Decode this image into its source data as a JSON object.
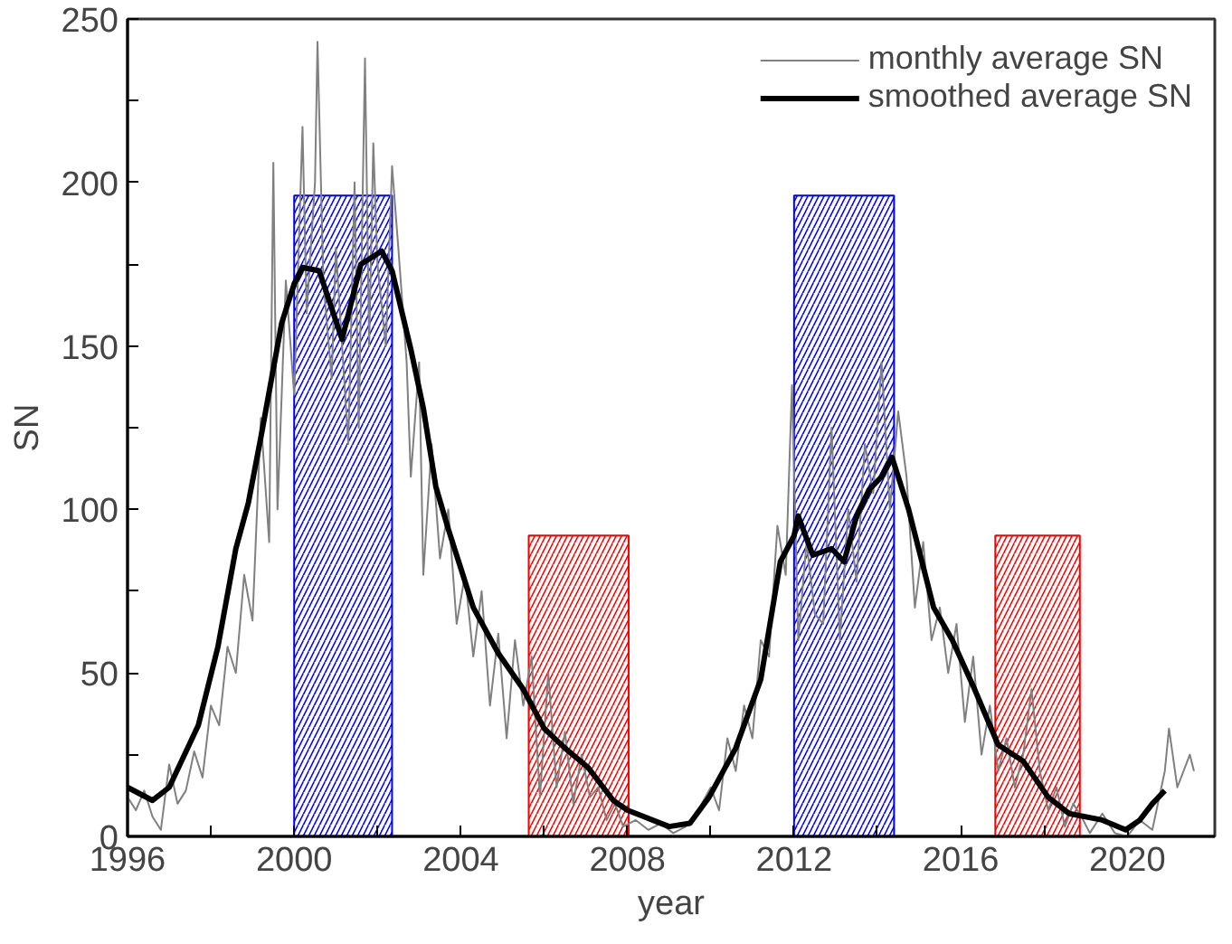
{
  "chart_data": {
    "type": "line",
    "xlabel": "year",
    "ylabel": "SN",
    "xlim": [
      1996,
      2022.1
    ],
    "ylim": [
      0,
      250
    ],
    "xticks": [
      1996,
      {
        "value": 1998,
        "label": null
      },
      2000,
      {
        "value": 2002,
        "label": null
      },
      2004,
      {
        "value": 2006,
        "label": null
      },
      2008,
      {
        "value": 2010,
        "label": null
      },
      2012,
      {
        "value": 2014,
        "label": null
      },
      2016,
      {
        "value": 2018,
        "label": null
      },
      2020
    ],
    "yticks": [
      0,
      {
        "value": 25,
        "label": null
      },
      50,
      {
        "value": 75,
        "label": null
      },
      100,
      {
        "value": 125,
        "label": null
      },
      150,
      {
        "value": 175,
        "label": null
      },
      200,
      {
        "value": 225,
        "label": null
      },
      250
    ],
    "grid": false,
    "legend": "top right",
    "line_style": "solid",
    "marker": "none",
    "series": [
      {
        "type": "area",
        "color": "#0000ff",
        "x": [
          2000.0,
          2002.35
        ],
        "values": [
          196,
          196
        ]
      },
      {
        "type": "area",
        "color": "#ff0000",
        "x": [
          2005.63,
          2008.03
        ],
        "values": [
          92,
          92
        ]
      },
      {
        "type": "area",
        "color": "#0000ff",
        "x": [
          2012.0,
          2014.4
        ],
        "values": [
          196,
          196
        ]
      },
      {
        "type": "area",
        "color": "#ff0000",
        "x": [
          2016.83,
          2018.86
        ],
        "values": [
          92,
          92
        ]
      },
      {
        "name": "monthly average SN",
        "color": "#808080",
        "x": [
          1996.0,
          1996.2,
          1996.4,
          1996.6,
          1996.8,
          1997.0,
          1997.2,
          1997.4,
          1997.6,
          1997.8,
          1998.0,
          1998.2,
          1998.4,
          1998.6,
          1998.8,
          1999.0,
          1999.2,
          1999.4,
          1999.5,
          1999.6,
          1999.8,
          2000.0,
          2000.2,
          2000.3,
          2000.5,
          2000.56,
          2000.7,
          2000.9,
          2001.0,
          2001.15,
          2001.3,
          2001.45,
          2001.55,
          2001.7,
          2001.8,
          2001.9,
          2002.0,
          2002.2,
          2002.35,
          2002.5,
          2002.7,
          2002.8,
          2003.0,
          2003.1,
          2003.3,
          2003.5,
          2003.7,
          2003.9,
          2004.1,
          2004.3,
          2004.5,
          2004.7,
          2004.9,
          2005.1,
          2005.3,
          2005.5,
          2005.7,
          2005.9,
          2006.1,
          2006.3,
          2006.5,
          2006.7,
          2006.9,
          2007.1,
          2007.3,
          2007.5,
          2007.7,
          2007.9,
          2008.2,
          2008.5,
          2008.8,
          2009.1,
          2009.4,
          2009.7,
          2010.0,
          2010.2,
          2010.4,
          2010.6,
          2010.8,
          2011.0,
          2011.2,
          2011.4,
          2011.6,
          2011.8,
          2011.95,
          2012.1,
          2012.3,
          2012.5,
          2012.7,
          2012.9,
          2013.1,
          2013.3,
          2013.5,
          2013.7,
          2013.9,
          2014.1,
          2014.3,
          2014.5,
          2014.7,
          2014.9,
          2015.1,
          2015.3,
          2015.5,
          2015.7,
          2015.9,
          2016.1,
          2016.3,
          2016.5,
          2016.7,
          2016.9,
          2017.1,
          2017.3,
          2017.5,
          2017.7,
          2017.9,
          2018.1,
          2018.3,
          2018.5,
          2018.7,
          2018.9,
          2019.1,
          2019.4,
          2019.7,
          2020.0,
          2020.3,
          2020.6,
          2020.9,
          2021.0,
          2021.2,
          2021.5,
          2021.6
        ],
        "values": [
          12,
          8,
          14,
          6,
          2,
          22,
          10,
          14,
          26,
          18,
          40,
          34,
          58,
          50,
          80,
          66,
          128,
          90,
          206,
          100,
          170,
          135,
          217,
          160,
          200,
          243,
          170,
          140,
          180,
          150,
          120,
          200,
          125,
          238,
          150,
          212,
          175,
          150,
          205,
          180,
          145,
          110,
          145,
          80,
          120,
          85,
          100,
          65,
          80,
          55,
          75,
          40,
          62,
          30,
          60,
          40,
          55,
          12,
          50,
          15,
          32,
          10,
          25,
          12,
          15,
          5,
          10,
          3,
          5,
          2,
          4,
          1,
          3,
          8,
          15,
          8,
          30,
          20,
          40,
          30,
          60,
          55,
          95,
          80,
          138,
          60,
          90,
          68,
          65,
          125,
          60,
          100,
          78,
          120,
          105,
          145,
          100,
          130,
          110,
          70,
          90,
          60,
          70,
          50,
          65,
          35,
          55,
          25,
          40,
          20,
          30,
          15,
          25,
          45,
          20,
          8,
          15,
          3,
          10,
          6,
          1,
          7,
          1,
          0,
          5,
          2,
          20,
          33,
          15,
          25,
          20
        ]
      },
      {
        "name": "smoothed average SN",
        "color": "#000000",
        "x": [
          1996.0,
          1996.6,
          1997.0,
          1997.7,
          1998.17,
          1998.6,
          1998.9,
          1999.2,
          1999.7,
          2000.0,
          2000.2,
          2000.6,
          2001.15,
          2001.6,
          2002.1,
          2002.35,
          2002.8,
          2003.1,
          2003.4,
          2003.7,
          2004.3,
          2004.9,
          2005.5,
          2006.0,
          2006.5,
          2007.06,
          2007.66,
          2008.0,
          2009.0,
          2009.5,
          2009.96,
          2010.6,
          2011.2,
          2011.67,
          2012.0,
          2012.1,
          2012.45,
          2012.9,
          2013.2,
          2013.5,
          2013.8,
          2014.1,
          2014.35,
          2014.75,
          2015.35,
          2015.8,
          2016.3,
          2016.9,
          2017.5,
          2018.1,
          2018.6,
          2019.4,
          2019.96,
          2020.3,
          2020.6,
          2020.9
        ],
        "values": [
          15,
          11,
          15,
          34,
          58,
          88,
          102,
          122,
          157,
          169,
          174,
          173,
          152,
          175,
          179,
          173,
          149,
          131,
          107,
          94,
          70,
          56,
          45,
          33,
          27,
          21,
          11,
          8,
          3,
          4,
          12,
          27,
          48,
          84,
          92,
          98,
          86,
          88,
          84,
          98,
          106,
          110,
          116,
          100,
          70,
          60,
          46,
          28,
          23,
          12,
          7,
          5,
          2,
          5,
          10,
          14
        ]
      }
    ]
  }
}
